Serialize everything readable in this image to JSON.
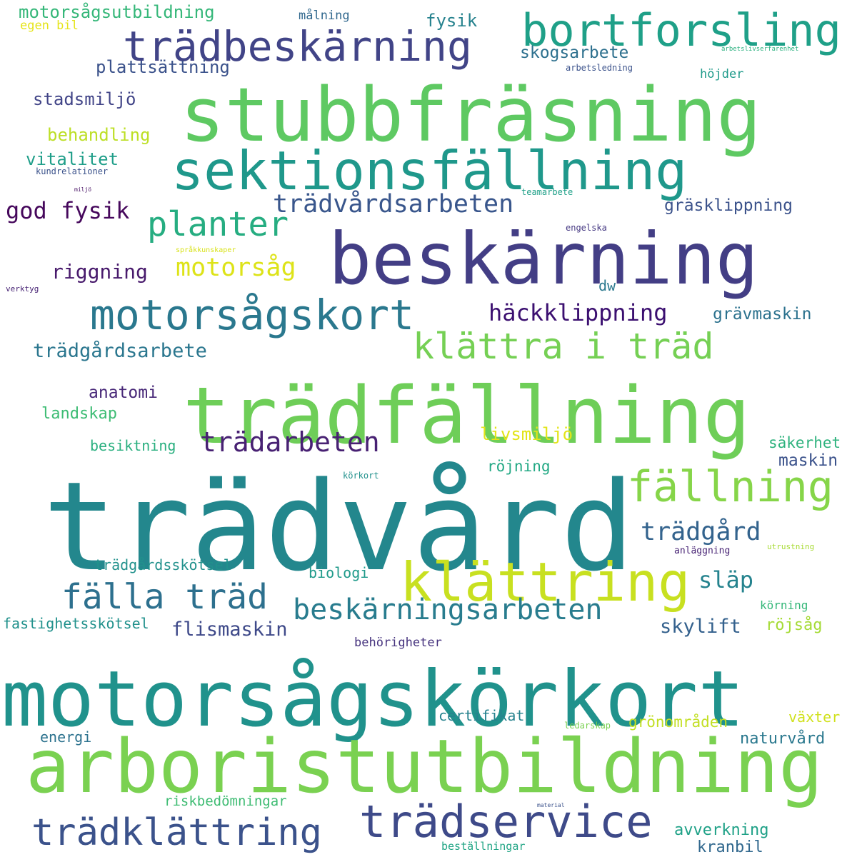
{
  "cloud": {
    "words": [
      {
        "text": "trädvård",
        "color": "#23878d"
      },
      {
        "text": "motorsågskörkort",
        "color": "#20928c"
      },
      {
        "text": "arboristutbildning",
        "color": "#7ad151"
      },
      {
        "text": "trädfällning",
        "color": "#6ece58"
      },
      {
        "text": "stubbfräsning",
        "color": "#5ec962"
      },
      {
        "text": "beskärning",
        "color": "#433e85"
      },
      {
        "text": "sektionsfällning",
        "color": "#1f988b"
      },
      {
        "text": "bortforsling",
        "color": "#1fa088"
      },
      {
        "text": "trädbeskärning",
        "color": "#414487"
      },
      {
        "text": "klättring",
        "color": "#c8e020"
      },
      {
        "text": "motorsågskort",
        "color": "#2a788e"
      },
      {
        "text": "trädservice",
        "color": "#3e4a89"
      },
      {
        "text": "trädklättring",
        "color": "#3b528b"
      },
      {
        "text": "fällning",
        "color": "#86d549"
      },
      {
        "text": "klättra i träd",
        "color": "#75d054"
      },
      {
        "text": "fälla träd",
        "color": "#2d708e"
      },
      {
        "text": "planter",
        "color": "#26ad81"
      },
      {
        "text": "beskärningsarbeten",
        "color": "#287c8e"
      },
      {
        "text": "trädarbeten",
        "color": "#482173"
      },
      {
        "text": "trädvårdsarbeten",
        "color": "#39568c"
      },
      {
        "text": "motorsåg",
        "color": "#dde318"
      },
      {
        "text": "häckklippning",
        "color": "#3b0f70"
      },
      {
        "text": "trädgård",
        "color": "#33638d"
      },
      {
        "text": "god fysik",
        "color": "#46085c"
      },
      {
        "text": "släp",
        "color": "#25838e"
      },
      {
        "text": "riggning",
        "color": "#481a6c"
      },
      {
        "text": "trädgårdsarbete",
        "color": "#2a768e"
      },
      {
        "text": "flismaskin",
        "color": "#3e4989"
      },
      {
        "text": "skylift",
        "color": "#34618d"
      },
      {
        "text": "motorsågsutbildning",
        "color": "#35b779"
      },
      {
        "text": "plattsättning",
        "color": "#3b528b"
      },
      {
        "text": "stadsmiljö",
        "color": "#414487"
      },
      {
        "text": "vitalitet",
        "color": "#1f9e89"
      },
      {
        "text": "behandling",
        "color": "#bddf26"
      },
      {
        "text": "skogsarbete",
        "color": "#2d708e"
      },
      {
        "text": "gräsklippning",
        "color": "#3b528b"
      },
      {
        "text": "grävmaskin",
        "color": "#2c728e"
      },
      {
        "text": "anatomi",
        "color": "#482878"
      },
      {
        "text": "landskap",
        "color": "#3dbc74"
      },
      {
        "text": "livsmiljö",
        "color": "#e2e418"
      },
      {
        "text": "röjning",
        "color": "#22a884"
      },
      {
        "text": "maskin",
        "color": "#3b528b"
      },
      {
        "text": "säkerhet",
        "color": "#2db27d"
      },
      {
        "text": "trädgårdsskötsel",
        "color": "#21918c"
      },
      {
        "text": "biologi",
        "color": "#1f9a8a"
      },
      {
        "text": "fastighetsskötsel",
        "color": "#21918c"
      },
      {
        "text": "röjsåg",
        "color": "#a5db36"
      },
      {
        "text": "besiktning",
        "color": "#29af7f"
      },
      {
        "text": "certifikat",
        "color": "#26828e"
      },
      {
        "text": "grönområden",
        "color": "#c2df23"
      },
      {
        "text": "växter",
        "color": "#d0e11c"
      },
      {
        "text": "naturvård",
        "color": "#2a788e"
      },
      {
        "text": "energi",
        "color": "#2c728e"
      },
      {
        "text": "avverkning",
        "color": "#1fa187"
      },
      {
        "text": "kranbil",
        "color": "#31688e"
      },
      {
        "text": "riskbedömningar",
        "color": "#3fbc73"
      },
      {
        "text": "behörigheter",
        "color": "#46337e"
      },
      {
        "text": "beställningar",
        "color": "#21a585"
      },
      {
        "text": "fysik",
        "color": "#26828e"
      },
      {
        "text": "målning",
        "color": "#31688e"
      },
      {
        "text": "höjder",
        "color": "#1f9a8a"
      },
      {
        "text": "egen bil",
        "color": "#e5e419"
      },
      {
        "text": "dw",
        "color": "#2a788e"
      },
      {
        "text": "kundrelationer",
        "color": "#3b528b"
      },
      {
        "text": "arbetsledning",
        "color": "#3b528b"
      },
      {
        "text": "arbetslivserfarenhet",
        "color": "#2ab07f"
      },
      {
        "text": "teamarbete",
        "color": "#1fa088"
      },
      {
        "text": "engelska",
        "color": "#453882"
      },
      {
        "text": "språkkunskaper",
        "color": "#d8e219"
      },
      {
        "text": "miljö",
        "color": "#471164"
      },
      {
        "text": "verktyg",
        "color": "#482475"
      },
      {
        "text": "körkort",
        "color": "#21918c"
      },
      {
        "text": "anläggning",
        "color": "#482475"
      },
      {
        "text": "utrustning",
        "color": "#a8db34"
      },
      {
        "text": "körning",
        "color": "#35b779"
      },
      {
        "text": "ledarskap",
        "color": "#7ad151"
      },
      {
        "text": "material",
        "color": "#3b528b"
      }
    ]
  }
}
